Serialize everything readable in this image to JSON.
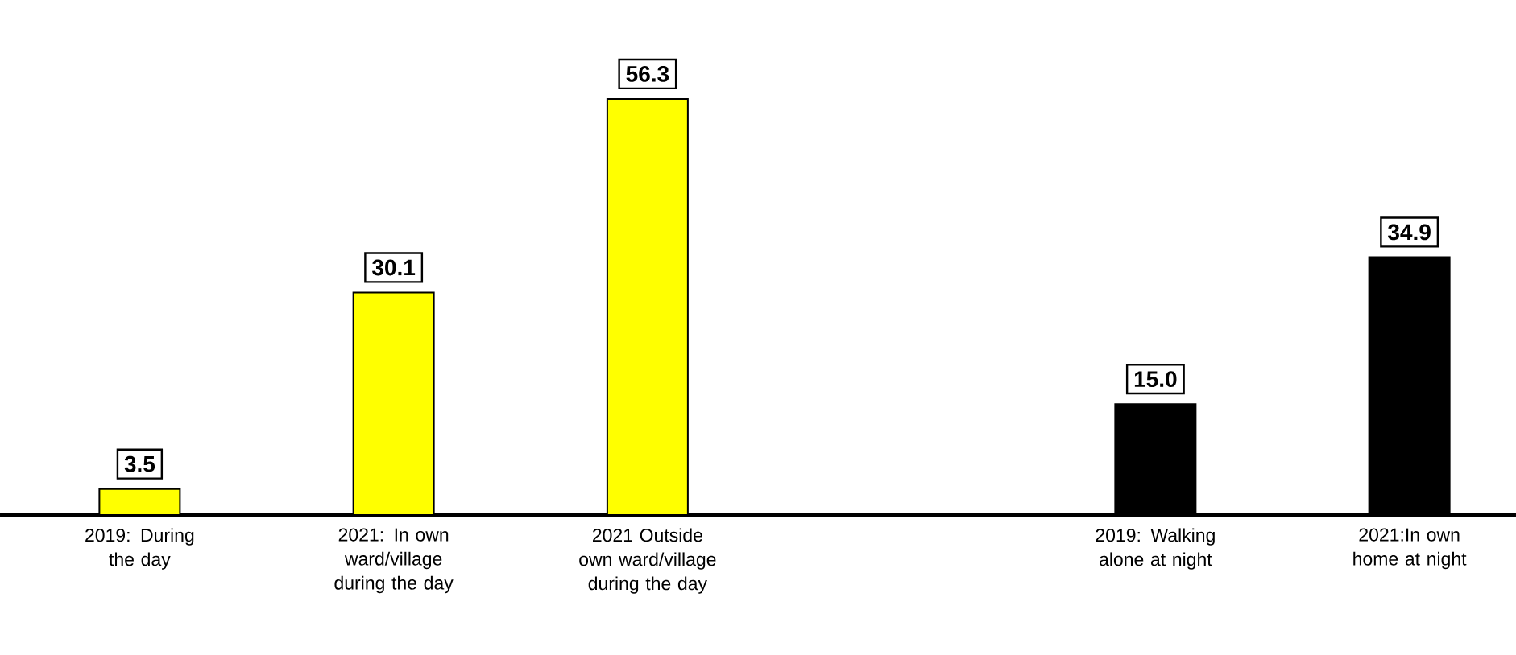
{
  "chart_data": {
    "type": "bar",
    "categories": [
      "2019: During the day",
      "2021: In own ward/village during the day",
      "2021 Outside own ward/village during the day",
      null,
      "2019: Walking alone at night",
      "2021:In own home at night"
    ],
    "values": [
      3.5,
      30.1,
      56.3,
      null,
      15.0,
      34.9
    ],
    "colors": [
      "#ffff00",
      "#ffff00",
      "#ffff00",
      null,
      "#000000",
      "#000000"
    ],
    "value_labels": [
      "3.5",
      "30.1",
      "56.3",
      null,
      "15.0",
      "34.9"
    ]
  }
}
